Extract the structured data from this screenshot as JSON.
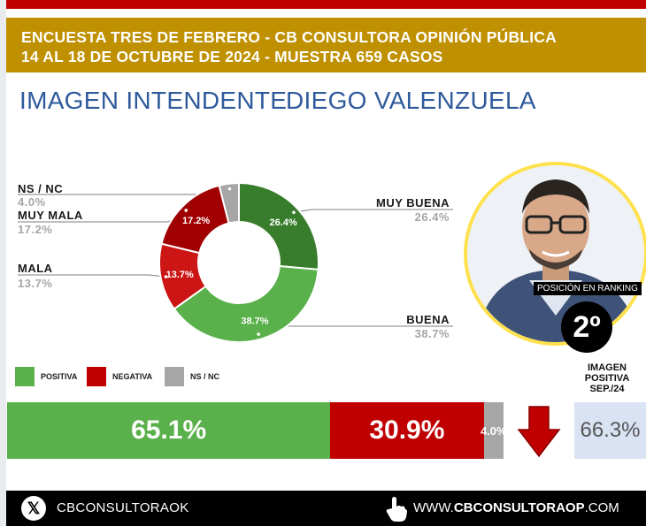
{
  "header": {
    "line1": "ENCUESTA TRES DE FEBRERO - CB CONSULTORA OPINIÓN PÚBLICA",
    "line2": "14 AL 18 DE OCTUBRE DE 2024 - MUESTRA 659 CASOS"
  },
  "title": {
    "left": "IMAGEN INTENDENTE",
    "right": "DIEGO VALENZUELA"
  },
  "colors": {
    "header_bg": "#bf9000",
    "positive": "#5ab14b",
    "negative": "#c00000",
    "nsnc": "#a6a6a6",
    "muy_buena": "#387d2c",
    "buena": "#5ab14b",
    "mala": "#cc1515",
    "muy_mala": "#a00000",
    "previous_box": "#dae3f3",
    "title_blue": "#2e5a9c"
  },
  "chart_data": {
    "type": "pie",
    "variant": "donut",
    "slices": [
      {
        "label": "MUY BUENA",
        "value": 26.4,
        "display": "26.4%"
      },
      {
        "label": "BUENA",
        "value": 38.7,
        "display": "38.7%"
      },
      {
        "label": "MALA",
        "value": 13.7,
        "display": "13.7%"
      },
      {
        "label": "MUY MALA",
        "value": 17.2,
        "display": "17.2%"
      },
      {
        "label": "NS / NC",
        "value": 4.0,
        "display": "4.0%"
      }
    ]
  },
  "ranking": {
    "label": "POSICIÓN EN RANKING",
    "value": "2º"
  },
  "legend": [
    {
      "label": "POSITIVA",
      "color": "#5ab14b"
    },
    {
      "label": "NEGATIVA",
      "color": "#c00000"
    },
    {
      "label": "NS / NC",
      "color": "#a6a6a6"
    }
  ],
  "summary_bar": {
    "segments": [
      {
        "label": "POSITIVA",
        "value": 65.1,
        "display": "65.1%"
      },
      {
        "label": "NEGATIVA",
        "value": 30.9,
        "display": "30.9%"
      },
      {
        "label": "NS / NC",
        "value": 4.0,
        "display": "4.0%"
      }
    ]
  },
  "previous": {
    "label_line1": "IMAGEN",
    "label_line2": "POSITIVA",
    "label_line3": "SEP./24",
    "value": "66.3%",
    "trend": "down-arrow-icon"
  },
  "footer": {
    "handle": "CBCONSULTORAOK",
    "website_prefix": "WWW.",
    "website_main": "CBCONSULTORAOP",
    "website_suffix": ".COM"
  }
}
